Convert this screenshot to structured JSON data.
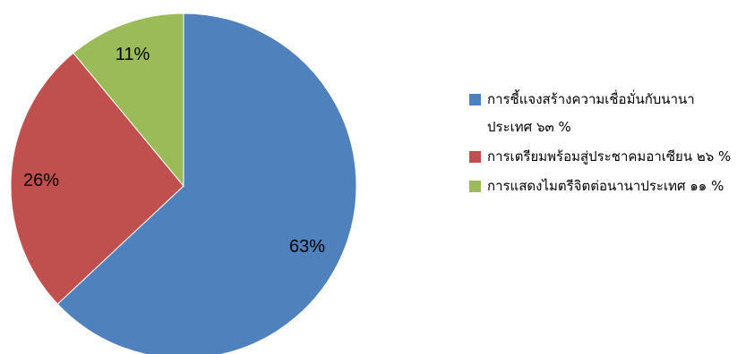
{
  "chart_data": {
    "type": "pie",
    "title": "",
    "start_angle_deg": 0,
    "direction": "clockwise",
    "legend_position": "right",
    "slices": [
      {
        "name": "การชี้แจงสร้างความเชื่อมั่นกับนานาประเทศ ๖๓ %",
        "value": 63,
        "label": "63%",
        "color": "#4F81BD"
      },
      {
        "name": "การเตรียมพร้อมสู่ประชาคมอาเซียน ๒๖ %",
        "value": 26,
        "label": "26%",
        "color": "#C0504D"
      },
      {
        "name": "การแสดงไมตรีจิตต่อนานาประเทศ ๑๑ %",
        "value": 11,
        "label": "11%",
        "color": "#9BBB59"
      }
    ]
  }
}
